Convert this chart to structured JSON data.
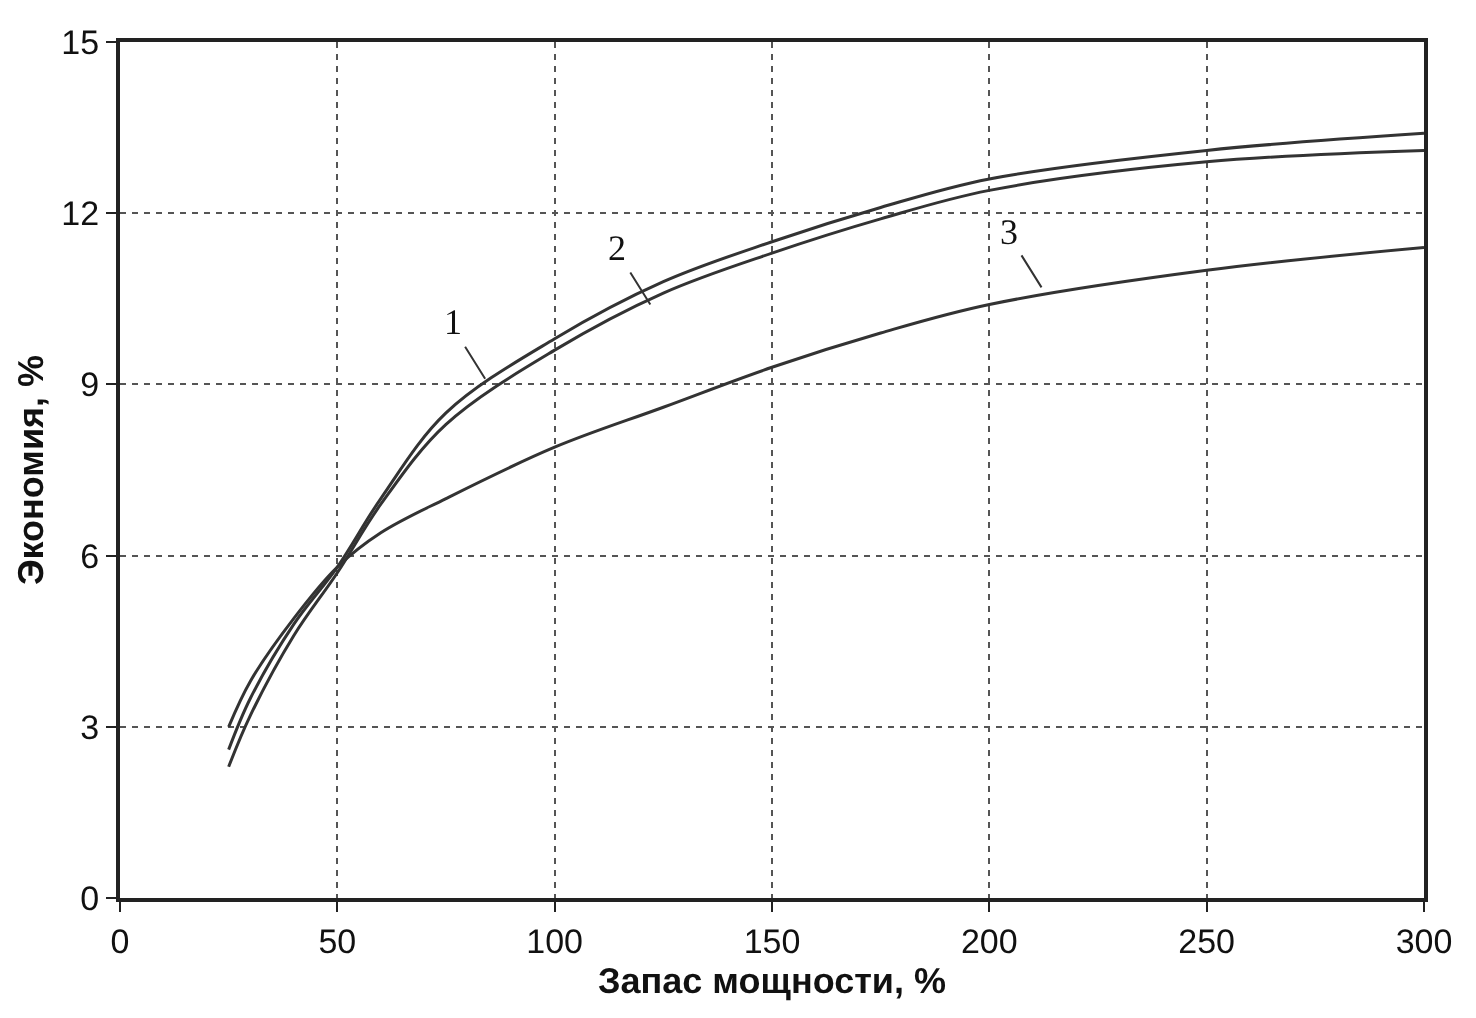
{
  "chart_data": {
    "type": "line",
    "xlabel": "Запас мощности, %",
    "ylabel": "Экономия, %",
    "xlim": [
      0,
      300
    ],
    "xticks": [
      0,
      50,
      100,
      150,
      200,
      250,
      300
    ],
    "ylim": [
      0,
      15
    ],
    "yticks": [
      0,
      3,
      6,
      9,
      12,
      15
    ],
    "grid": true,
    "legend": false,
    "marker": "none",
    "line_style": "solid",
    "x": [
      25,
      30,
      40,
      50,
      60,
      75,
      100,
      125,
      150,
      175,
      200,
      250,
      300
    ],
    "series": [
      {
        "color": "#333333",
        "values": [
          2.6,
          3.5,
          4.8,
          5.8,
          7.0,
          8.5,
          9.8,
          10.8,
          11.5,
          12.1,
          12.6,
          13.1,
          13.4
        ]
      },
      {
        "color": "#333333",
        "values": [
          2.3,
          3.2,
          4.6,
          5.7,
          6.9,
          8.3,
          9.6,
          10.6,
          11.3,
          11.9,
          12.4,
          12.9,
          13.1
        ]
      },
      {
        "color": "#333333",
        "values": [
          3.0,
          3.8,
          4.9,
          5.8,
          6.4,
          7.0,
          7.9,
          8.6,
          9.3,
          9.9,
          10.4,
          11.0,
          11.4
        ]
      }
    ],
    "annotations": [
      {
        "text": "1",
        "x": 84,
        "y": 9.1
      },
      {
        "text": "2",
        "x": 122,
        "y": 10.4
      },
      {
        "text": "3",
        "x": 212,
        "y": 10.7
      }
    ]
  }
}
